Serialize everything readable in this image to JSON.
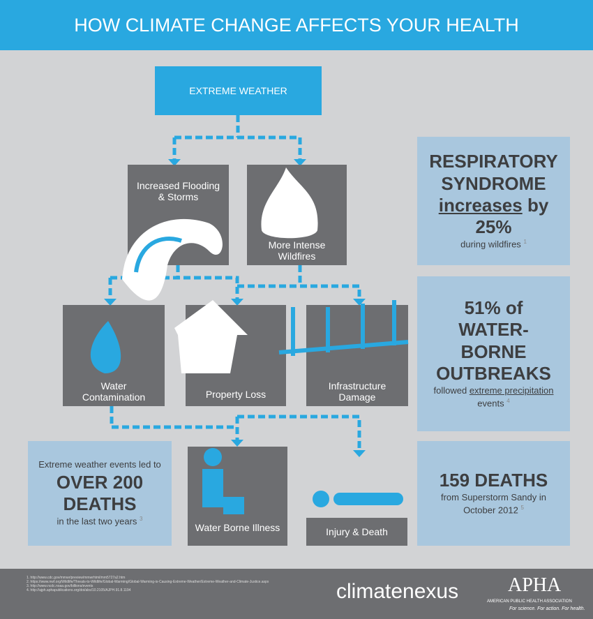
{
  "header": {
    "title": "HOW CLIMATE CHANGE AFFECTS YOUR HEALTH"
  },
  "nodes": [
    {
      "label": "EXTREME WEATHER"
    },
    {
      "label": "Increased Flooding & Storms"
    },
    {
      "label": "More Intense Wildfires"
    },
    {
      "label": "Water Contamination"
    },
    {
      "label": "Property Loss"
    },
    {
      "label": "Infrastructure Damage"
    },
    {
      "label": "Water Borne Illness"
    },
    {
      "label": "Injury & Death"
    }
  ],
  "stats": [
    {
      "headline": "RESPIRATORY SYNDROME",
      "emphasis": "increases",
      "figure": "by 25%",
      "detail": "during wildfires",
      "note": "1"
    },
    {
      "headline": "51% of WATER-BORNE OUTBREAKS",
      "lead": "followed",
      "emphasis": "extreme precipitation",
      "detail": "events",
      "note": "4"
    },
    {
      "headline": "159 DEATHS",
      "detail": "from Superstorm Sandy in October 2012",
      "note": "5"
    },
    {
      "lead": "Extreme weather events led to",
      "headline": "OVER 200 DEATHS",
      "detail": "in the last two years",
      "note": "3"
    }
  ],
  "footer": {
    "references": [
      "1.  http://www.cdc.gov/mmwr/preview/mmwrhtml/mm5727a2.htm",
      "2.  https://www.nwf.org/Wildlife/Threats-to-Wildlife/Global-Warming/Global-Warming-is-Causing-Extreme-Weather/Extreme-Weather-and-Climate-Justice.aspx",
      "3.  http://www.ncdc.noaa.gov/billions/events",
      "4.  http://ajph.aphapublications.org/doi/abs/10.2105/AJPH.91.8.1194"
    ],
    "brand": "climatenexus",
    "org": "APHA",
    "org_name": "AMERICAN PUBLIC HEALTH ASSOCIATION",
    "tagline": "For science. For action. For health."
  }
}
